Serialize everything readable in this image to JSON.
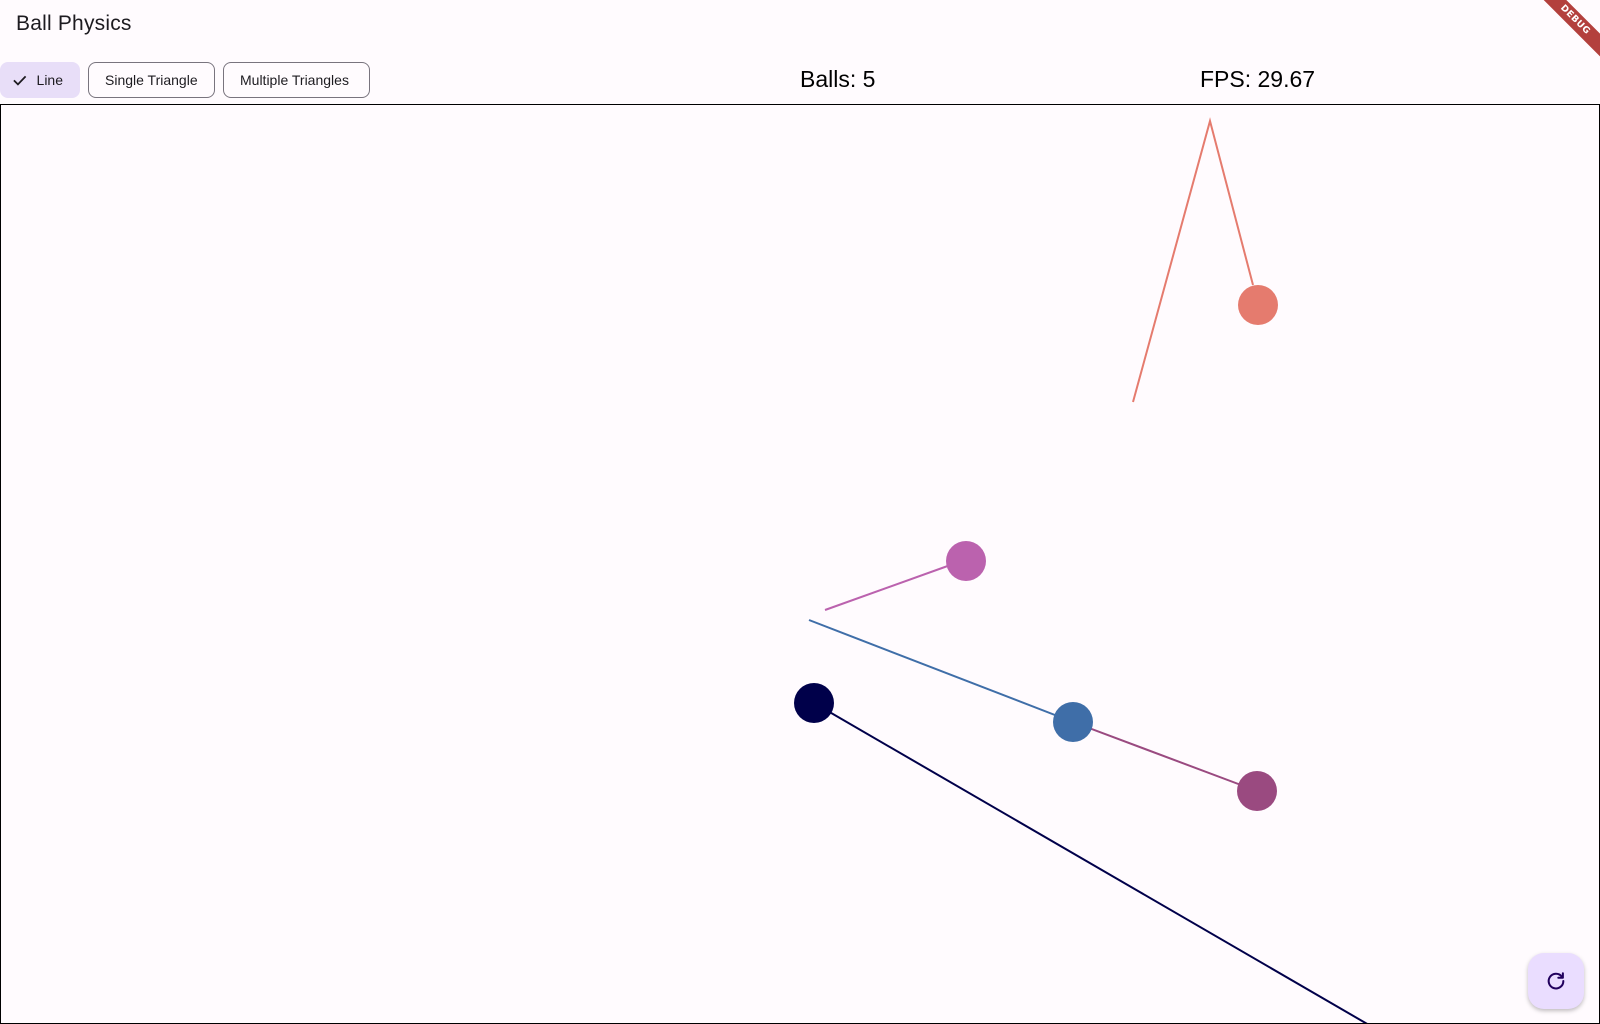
{
  "app": {
    "title": "Ball Physics",
    "debug_banner": "DEBUG"
  },
  "toolbar": {
    "chips": [
      {
        "label": "Line",
        "selected": true
      },
      {
        "label": "Single Triangle",
        "selected": false
      },
      {
        "label": "Multiple Triangles",
        "selected": false
      }
    ],
    "balls_label": "Balls: 5",
    "fps_label": "FPS: 29.67"
  },
  "fab": {
    "icon": "refresh-icon"
  },
  "colors": {
    "background": "#fffbfe",
    "chip_selected": "#e8def8",
    "fab": "#eaddff",
    "ball_coral": "#e57b6e",
    "ball_orchid": "#bb62ae",
    "ball_steel_blue": "#3f6ea8",
    "ball_plum": "#9a4a80",
    "ball_navy": "#00004a"
  }
}
